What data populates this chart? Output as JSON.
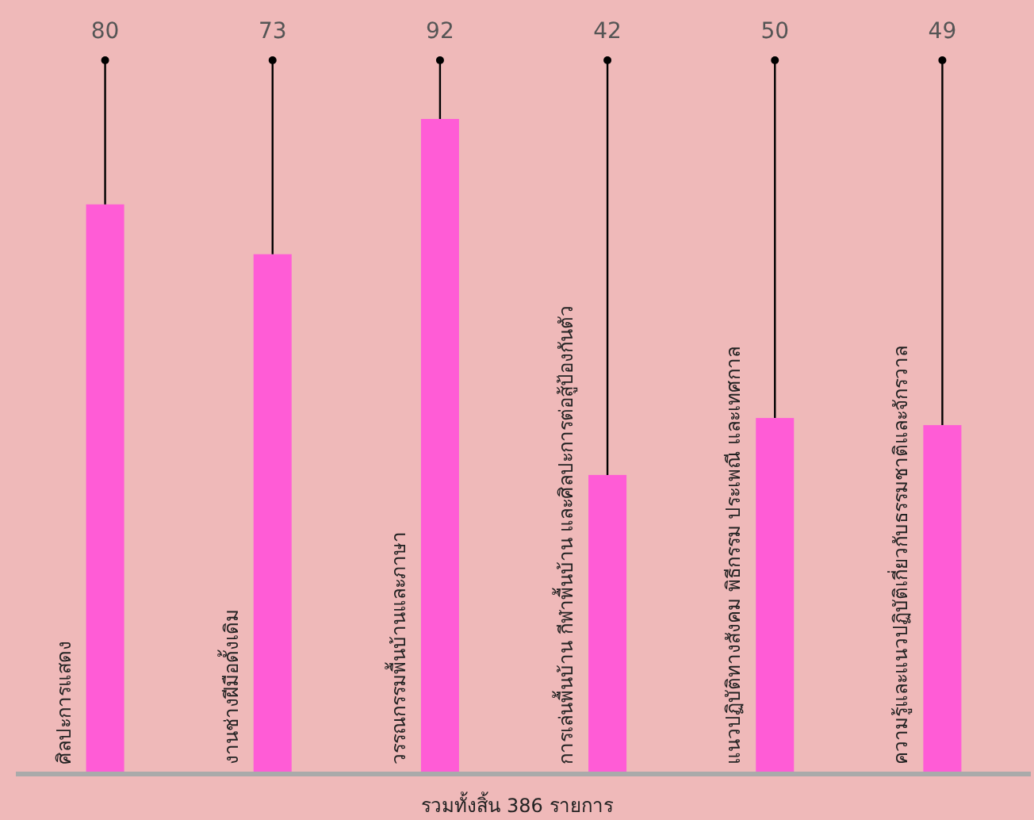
{
  "chart_data": {
    "type": "bar",
    "categories": [
      "ศิลปะการแสดง",
      "งานช่างฝีมือดั้งเดิม",
      "วรรณกรรมพื้นบ้านและภาษา",
      "การเล่นพื้นบ้าน กีฬาพื้นบ้าน และศิลปะการต่อสู้ป้องกันตัว",
      "แนวปฏิบัติทางสังคม พิธีกรรม ประเพณี และเทศกาล",
      "ความรู้และแนวปฏิบัติเกี่ยวกับธรรมชาติและจักรวาล"
    ],
    "values": [
      80,
      73,
      92,
      42,
      50,
      49
    ],
    "color": "#ff5cd6",
    "data_labels": true,
    "annotations": [
      "รวมทั้งสิ้น 386 รายการ"
    ]
  }
}
